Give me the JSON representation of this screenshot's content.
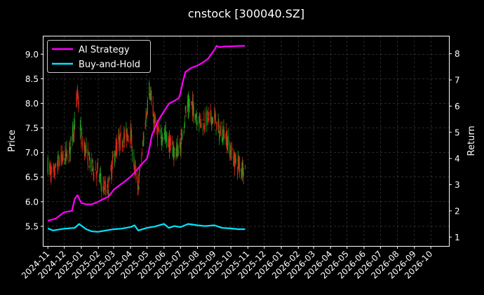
{
  "chart_data": {
    "type": "line",
    "title": "cnstock [300040.SZ]",
    "ylabel_left": "Price",
    "ylabel_right": "Return",
    "ylim_left": [
      5.1,
      9.36
    ],
    "ylim_right": [
      0.66,
      8.66
    ],
    "xlim": [
      "2024-10-24",
      "2026-11-03"
    ],
    "left_ticks": [
      "5.5",
      "6.0",
      "6.5",
      "7.0",
      "7.5",
      "8.0",
      "8.5",
      "9.0"
    ],
    "right_ticks": [
      "1",
      "2",
      "3",
      "4",
      "5",
      "6",
      "7",
      "8"
    ],
    "x_ticks": [
      "2024-11",
      "2024-12",
      "2025-01",
      "2025-02",
      "2025-03",
      "2025-04",
      "2025-05",
      "2025-06",
      "2025-07",
      "2025-08",
      "2025-09",
      "2025-10",
      "2025-11",
      "2025-12",
      "2026-01",
      "2026-02",
      "2026-03",
      "2026-04",
      "2026-05",
      "2026-06",
      "2026-07",
      "2026-08",
      "2026-09",
      "2026-10"
    ],
    "grid": true,
    "legend_position": "top-left",
    "colors": {
      "background": "#000000",
      "up": "#1ea01e",
      "down": "#d42a16",
      "ai": "#ff00ff",
      "bh": "#00e5ff",
      "grid": "#444444"
    },
    "series": [
      {
        "name": "AI Strategy",
        "axis": "right",
        "x": [
          "2024-11-01",
          "2024-11-15",
          "2024-12-01",
          "2024-12-15",
          "2024-12-20",
          "2024-12-25",
          "2025-01-01",
          "2025-01-10",
          "2025-01-20",
          "2025-02-01",
          "2025-02-10",
          "2025-02-20",
          "2025-03-01",
          "2025-03-10",
          "2025-03-20",
          "2025-04-01",
          "2025-04-10",
          "2025-04-20",
          "2025-05-01",
          "2025-05-05",
          "2025-05-10",
          "2025-05-20",
          "2025-06-01",
          "2025-06-10",
          "2025-06-20",
          "2025-06-28",
          "2025-07-01",
          "2025-07-05",
          "2025-07-10",
          "2025-07-20",
          "2025-08-01",
          "2025-08-10",
          "2025-08-20",
          "2025-09-01",
          "2025-09-05",
          "2025-09-10",
          "2025-09-20",
          "2025-10-01",
          "2025-10-15",
          "2025-10-27"
        ],
        "values": [
          1.62,
          1.7,
          1.95,
          2.0,
          2.45,
          2.6,
          2.3,
          2.25,
          2.25,
          2.35,
          2.45,
          2.55,
          2.8,
          2.95,
          3.1,
          3.3,
          3.5,
          3.75,
          4.0,
          4.35,
          4.9,
          5.4,
          5.8,
          6.1,
          6.2,
          6.3,
          6.5,
          6.9,
          7.3,
          7.45,
          7.55,
          7.65,
          7.8,
          8.15,
          8.3,
          8.25,
          8.28,
          8.28,
          8.3,
          8.3
        ]
      },
      {
        "name": "Buy-and-Hold",
        "axis": "right",
        "x": [
          "2024-11-01",
          "2024-11-10",
          "2024-12-01",
          "2024-12-20",
          "2024-12-28",
          "2025-01-10",
          "2025-01-20",
          "2025-02-01",
          "2025-02-15",
          "2025-03-01",
          "2025-03-15",
          "2025-04-01",
          "2025-04-08",
          "2025-04-15",
          "2025-05-01",
          "2025-05-15",
          "2025-06-01",
          "2025-06-10",
          "2025-06-20",
          "2025-07-01",
          "2025-07-15",
          "2025-08-01",
          "2025-08-15",
          "2025-09-01",
          "2025-09-15",
          "2025-10-01",
          "2025-10-15",
          "2025-10-27"
        ],
        "values": [
          1.33,
          1.25,
          1.32,
          1.35,
          1.5,
          1.3,
          1.22,
          1.2,
          1.25,
          1.3,
          1.32,
          1.38,
          1.45,
          1.25,
          1.35,
          1.4,
          1.5,
          1.35,
          1.42,
          1.38,
          1.5,
          1.45,
          1.42,
          1.45,
          1.35,
          1.33,
          1.3,
          1.3
        ]
      },
      {
        "name": "Price",
        "axis": "left",
        "x": [
          "2024-11-01",
          "2024-11-10",
          "2024-11-20",
          "2024-12-01",
          "2024-12-10",
          "2024-12-20",
          "2024-12-25",
          "2025-01-01",
          "2025-01-10",
          "2025-01-20",
          "2025-02-01",
          "2025-02-10",
          "2025-02-20",
          "2025-03-01",
          "2025-03-10",
          "2025-03-20",
          "2025-04-01",
          "2025-04-08",
          "2025-04-15",
          "2025-04-25",
          "2025-05-05",
          "2025-05-15",
          "2025-05-25",
          "2025-06-01",
          "2025-06-10",
          "2025-06-20",
          "2025-07-01",
          "2025-07-10",
          "2025-07-20",
          "2025-08-01",
          "2025-08-10",
          "2025-08-20",
          "2025-09-01",
          "2025-09-10",
          "2025-09-20",
          "2025-10-01",
          "2025-10-10",
          "2025-10-20",
          "2025-10-27"
        ],
        "values": [
          6.75,
          6.5,
          6.8,
          6.9,
          7.0,
          7.6,
          8.2,
          7.3,
          7.0,
          6.7,
          6.6,
          6.25,
          6.3,
          6.9,
          7.2,
          7.3,
          7.4,
          6.7,
          6.3,
          7.3,
          8.3,
          7.6,
          7.3,
          7.4,
          7.2,
          7.0,
          7.1,
          7.8,
          8.0,
          7.7,
          7.6,
          7.7,
          7.7,
          7.4,
          7.4,
          7.0,
          6.8,
          6.7,
          6.7
        ]
      }
    ]
  }
}
